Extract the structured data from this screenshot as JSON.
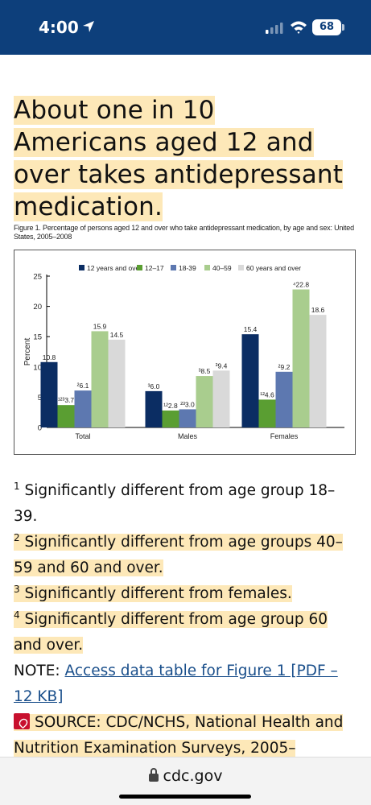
{
  "status_bar": {
    "time": "4:00",
    "battery": "68"
  },
  "article": {
    "title": "About one in 10 Americans aged 12 and over takes antidepressant medication."
  },
  "figure": {
    "caption": "Figure 1. Percentage of persons aged 12 and over who take antidepressant medication, by age and sex: United States, 2005–2008"
  },
  "chart_data": {
    "type": "bar",
    "categories": [
      "Total",
      "Males",
      "Females"
    ],
    "ylabel": "Percent",
    "ylim": [
      0,
      25
    ],
    "yticks": [
      0,
      5,
      10,
      15,
      20,
      25
    ],
    "grid": false,
    "legend_position": "top",
    "series": [
      {
        "name": "12 years and over",
        "color": "#0b2d63",
        "values": [
          10.8,
          6.0,
          15.4
        ],
        "labels": [
          "10.8",
          "³6.0",
          "15.4"
        ]
      },
      {
        "name": "12–17",
        "color": "#5a9e32",
        "values": [
          3.7,
          2.8,
          4.6
        ],
        "labels": [
          "¹²³3.7",
          "¹²2.8",
          "¹²4.6"
        ]
      },
      {
        "name": "18-39",
        "color": "#5d78b0",
        "values": [
          6.1,
          3.0,
          9.2
        ],
        "labels": [
          "²6.1",
          "²³3.0",
          "²9.2"
        ]
      },
      {
        "name": "40–59",
        "color": "#a9cd8e",
        "values": [
          15.9,
          8.5,
          22.8
        ],
        "labels": [
          "15.9",
          "³8.5",
          "⁴22.8"
        ]
      },
      {
        "name": "60 years and over",
        "color": "#d9d9d9",
        "values": [
          14.5,
          9.4,
          18.6
        ],
        "labels": [
          "14.5",
          "³9.4",
          "18.6"
        ]
      }
    ]
  },
  "footnotes": {
    "fn1_num": "1",
    "fn1_text": "Significantly different from age group 18–39.",
    "fn2_num": "2",
    "fn2_text": "Significantly different from age groups 40–59 and 60 and over.",
    "fn3_num": "3",
    "fn3_text": "Significantly different from females.",
    "fn4_num": "4",
    "fn4_text": "Significantly different from age group 60 and over.",
    "note_label": "NOTE: ",
    "note_link": "Access data table for Figure 1 [PDF – 12 KB]",
    "source_text": "SOURCE: CDC/NCHS, National Health and Nutrition Examination Surveys, 2005–"
  },
  "browser": {
    "url": "cdc.gov"
  },
  "icons": {
    "location": "location-arrow-icon",
    "signal": "cellular-signal-icon",
    "wifi": "wifi-icon",
    "battery": "battery-icon",
    "pdf": "pdf-icon",
    "lock": "lock-icon"
  }
}
